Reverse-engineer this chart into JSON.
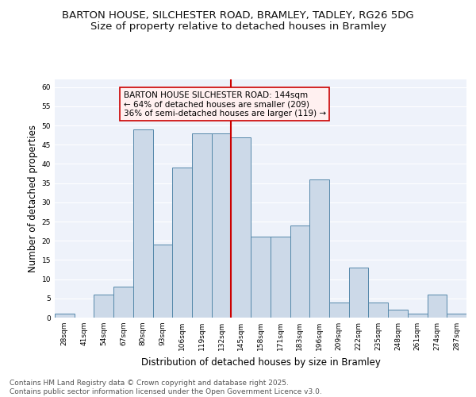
{
  "title_line1": "BARTON HOUSE, SILCHESTER ROAD, BRAMLEY, TADLEY, RG26 5DG",
  "title_line2": "Size of property relative to detached houses in Bramley",
  "xlabel": "Distribution of detached houses by size in Bramley",
  "ylabel": "Number of detached properties",
  "categories": [
    "28sqm",
    "41sqm",
    "54sqm",
    "67sqm",
    "80sqm",
    "93sqm",
    "106sqm",
    "119sqm",
    "132sqm",
    "145sqm",
    "158sqm",
    "171sqm",
    "183sqm",
    "196sqm",
    "209sqm",
    "222sqm",
    "235sqm",
    "248sqm",
    "261sqm",
    "274sqm",
    "287sqm"
  ],
  "values": [
    1,
    0,
    6,
    8,
    49,
    19,
    39,
    48,
    48,
    47,
    21,
    21,
    24,
    36,
    4,
    13,
    4,
    2,
    1,
    6,
    1
  ],
  "bar_color": "#ccd9e8",
  "bar_edge_color": "#5588aa",
  "background_color": "#eef2fa",
  "grid_color": "#ffffff",
  "annotation_text": "BARTON HOUSE SILCHESTER ROAD: 144sqm\n← 64% of detached houses are smaller (209)\n36% of semi-detached houses are larger (119) →",
  "vline_color": "#cc0000",
  "annotation_box_facecolor": "#fff0f0",
  "annotation_border_color": "#cc0000",
  "ylim": [
    0,
    62
  ],
  "yticks": [
    0,
    5,
    10,
    15,
    20,
    25,
    30,
    35,
    40,
    45,
    50,
    55,
    60
  ],
  "footer_text": "Contains HM Land Registry data © Crown copyright and database right 2025.\nContains public sector information licensed under the Open Government Licence v3.0.",
  "title_fontsize": 9.5,
  "subtitle_fontsize": 9.5,
  "axis_label_fontsize": 8.5,
  "tick_fontsize": 6.5,
  "footer_fontsize": 6.5,
  "annot_fontsize": 7.5
}
